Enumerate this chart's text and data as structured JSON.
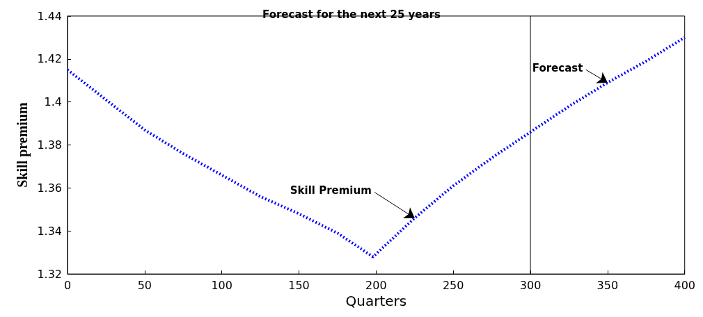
{
  "chart_data": {
    "type": "line",
    "title": "Forecast for the next 25 years",
    "xlabel": "Quarters",
    "ylabel": "Skill premium",
    "x": [
      0,
      25,
      50,
      75,
      100,
      125,
      150,
      175,
      198,
      225,
      250,
      275,
      300,
      325,
      350,
      375,
      400
    ],
    "series": [
      {
        "color": "#0000ff",
        "values": [
          1.415,
          1.401,
          1.387,
          1.376,
          1.366,
          1.356,
          1.348,
          1.339,
          1.328,
          1.346,
          1.361,
          1.374,
          1.386,
          1.398,
          1.409,
          1.419,
          1.43
        ]
      }
    ],
    "xlim": [
      0,
      400
    ],
    "xticks": [
      0,
      50,
      100,
      150,
      200,
      250,
      300,
      350,
      400
    ],
    "ylim": [
      1.32,
      1.44
    ],
    "yticks": [
      1.32,
      1.34,
      1.36,
      1.38,
      1.4,
      1.42,
      1.44
    ],
    "line_style": "dotted",
    "marker": "none",
    "grid": false,
    "ref_lines": [
      {
        "axis": "x",
        "value": 300,
        "color": "#000000",
        "line_style": "solid"
      }
    ],
    "annotations": [
      {
        "text": "Skill Premium",
        "x": 225,
        "y": 1.346
      },
      {
        "text": "Forecast",
        "x": 350,
        "y": 1.409
      }
    ]
  }
}
